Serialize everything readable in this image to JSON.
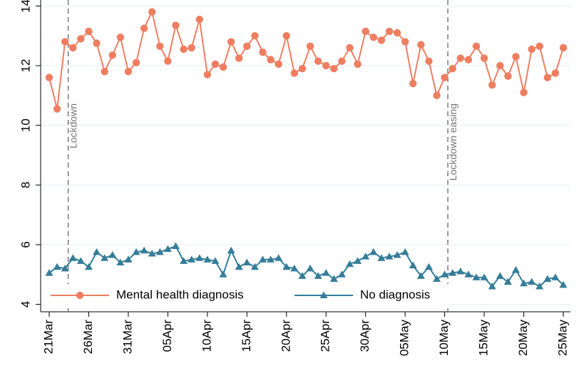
{
  "chart_data": {
    "type": "line",
    "categories": [
      "21Mar",
      null,
      null,
      null,
      null,
      "26Mar",
      null,
      null,
      null,
      null,
      "31Mar",
      null,
      null,
      null,
      null,
      "05Apr",
      null,
      null,
      null,
      null,
      "10Apr",
      null,
      null,
      null,
      null,
      "15Apr",
      null,
      null,
      null,
      null,
      "20Apr",
      null,
      null,
      null,
      null,
      "25Apr",
      null,
      null,
      null,
      null,
      "30Apr",
      null,
      null,
      null,
      null,
      "05May",
      null,
      null,
      null,
      null,
      "10May",
      null,
      null,
      null,
      null,
      "15May",
      null,
      null,
      null,
      null,
      "20May",
      null,
      null,
      null,
      null,
      "25May"
    ],
    "series": [
      {
        "name": "Mental health diagnosis",
        "color": "#ef7e61",
        "marker": "circle",
        "values": [
          11.6,
          10.55,
          12.8,
          12.6,
          12.9,
          13.15,
          12.75,
          11.8,
          12.35,
          12.95,
          11.8,
          12.1,
          13.25,
          13.8,
          12.65,
          12.15,
          13.35,
          12.55,
          12.6,
          13.55,
          11.7,
          12.05,
          11.95,
          12.8,
          12.25,
          12.65,
          13.0,
          12.45,
          12.2,
          12.05,
          13.0,
          11.75,
          11.9,
          12.65,
          12.15,
          12.0,
          11.9,
          12.15,
          12.6,
          12.05,
          13.15,
          12.95,
          12.85,
          13.15,
          13.1,
          12.8,
          11.4,
          12.7,
          12.15,
          11.0,
          11.6,
          11.9,
          12.25,
          12.2,
          12.65,
          12.25,
          11.35,
          12.0,
          11.65,
          12.3,
          11.1,
          12.55,
          12.65,
          11.6,
          11.75,
          12.6
        ]
      },
      {
        "name": "No diagnosis",
        "color": "#357d99",
        "marker": "triangle",
        "values": [
          5.05,
          5.25,
          5.2,
          5.55,
          5.45,
          5.25,
          5.75,
          5.55,
          5.65,
          5.4,
          5.5,
          5.75,
          5.8,
          5.7,
          5.75,
          5.85,
          5.95,
          5.45,
          5.5,
          5.55,
          5.5,
          5.45,
          5.0,
          5.8,
          5.25,
          5.4,
          5.25,
          5.5,
          5.5,
          5.55,
          5.25,
          5.2,
          4.95,
          5.2,
          4.95,
          5.05,
          4.85,
          5.0,
          5.35,
          5.45,
          5.6,
          5.75,
          5.55,
          5.6,
          5.65,
          5.75,
          5.3,
          4.95,
          5.25,
          4.85,
          5.0,
          5.05,
          5.1,
          5.0,
          4.9,
          4.9,
          4.6,
          4.95,
          4.75,
          5.15,
          4.7,
          4.75,
          4.6,
          4.85,
          4.9,
          4.65
        ]
      }
    ],
    "ylim": [
      3.75,
      14.2
    ],
    "yticks": [
      4,
      6,
      8,
      10,
      12,
      14
    ],
    "grid": true,
    "legend": "lower left",
    "annotations": [
      {
        "text": "Lockdown",
        "x": 2.4
      },
      {
        "text": "Lockdown easing",
        "x": 50.4
      }
    ]
  }
}
